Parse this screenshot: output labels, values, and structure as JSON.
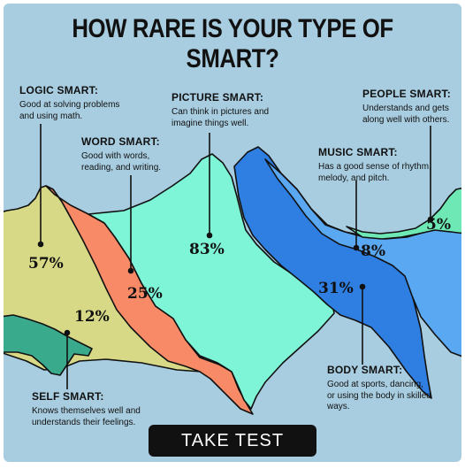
{
  "title": "HOW RARE IS YOUR TYPE OF SMART?",
  "colors": {
    "background": "#a8cde0",
    "logic": "#d7d986",
    "self": "#3aaa8c",
    "word": "#f88a67",
    "picture": "#7ef5d7",
    "body": "#2f7fe3",
    "music": "#5aa7f2",
    "people": "#6ee9b6"
  },
  "types": [
    {
      "id": "logic",
      "name": "LOGIC SMART:",
      "desc": "Good at solving problems and using math.",
      "percent": "57%"
    },
    {
      "id": "word",
      "name": "WORD SMART:",
      "desc": "Good with words, reading, and writing.",
      "percent": "25%"
    },
    {
      "id": "picture",
      "name": "PICTURE SMART:",
      "desc": "Can think in pictures and imagine things well.",
      "percent": "83%"
    },
    {
      "id": "people",
      "name": "PEOPLE SMART:",
      "desc": "Understands and gets along well with others.",
      "percent": "5%"
    },
    {
      "id": "music",
      "name": "MUSIC SMART:",
      "desc": "Has a good sense of rhythm, melody, and pitch.",
      "percent": "8%"
    },
    {
      "id": "self",
      "name": "SELF SMART:",
      "desc": "Knows themselves well and understands their feelings.",
      "percent": "12%"
    },
    {
      "id": "body",
      "name": "BODY SMART:",
      "desc": "Good at sports, dancing, or using the body in skilled ways.",
      "percent": "31%"
    }
  ],
  "button": {
    "label": "TAKE TEST"
  }
}
